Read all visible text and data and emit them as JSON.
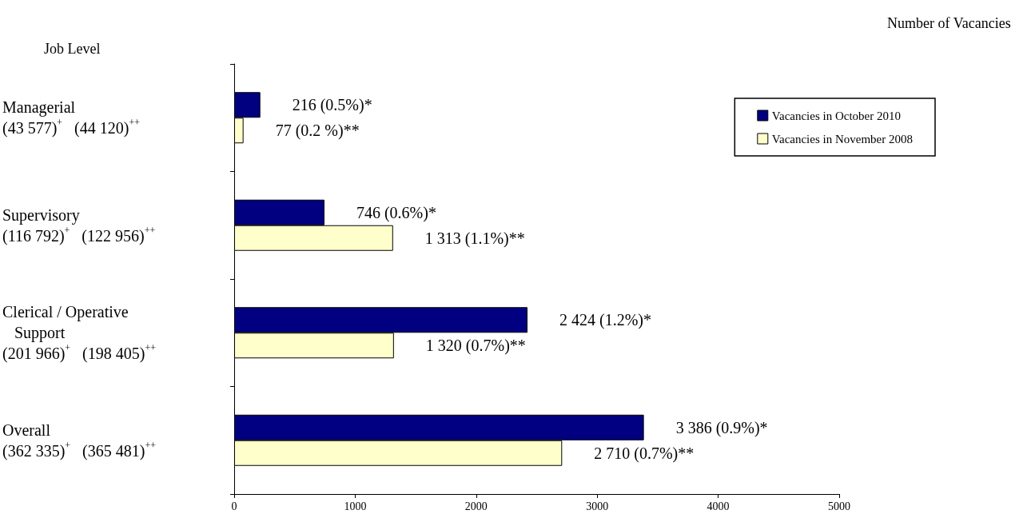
{
  "chart_data": {
    "type": "bar",
    "orientation": "horizontal",
    "xlabel": "Number of Vacancies",
    "annotations": [
      "Job Level"
    ],
    "categories": [
      "Managerial\n(43 577)$^{+}$   (44 120)$^{++}$",
      "Supervisory\n(116 792)$^{+}$   (122 956)$^{++}$",
      "Clerical / Operative\n   Support\n(201 966)$^{+}$   (198 405)$^{++}$",
      "Overall\n(362 335)$^{+}$   (365 481)$^{++}$"
    ],
    "series": [
      {
        "name": "Vacancies in October 2010",
        "color": "#000080",
        "values": [
          216,
          746,
          2424,
          3386
        ],
        "value_labels": [
          "216 (0.5%)*",
          "746 (0.6%)*",
          "2 424 (1.2%)*",
          "3 386 (0.9%)*"
        ]
      },
      {
        "name": "Vacancies in November 2008",
        "color": "#ffffcc",
        "values": [
          77,
          1313,
          1320,
          2710
        ],
        "value_labels": [
          "77 (0.2 %)**",
          "1 313 (1.1%)**",
          "1 320 (0.7%)**",
          "2 710 (0.7%)**"
        ]
      }
    ],
    "xlim": [
      0,
      5000
    ],
    "xticks": [
      0,
      1000,
      2000,
      3000,
      4000,
      5000
    ],
    "grid": false,
    "legend": "top right"
  }
}
